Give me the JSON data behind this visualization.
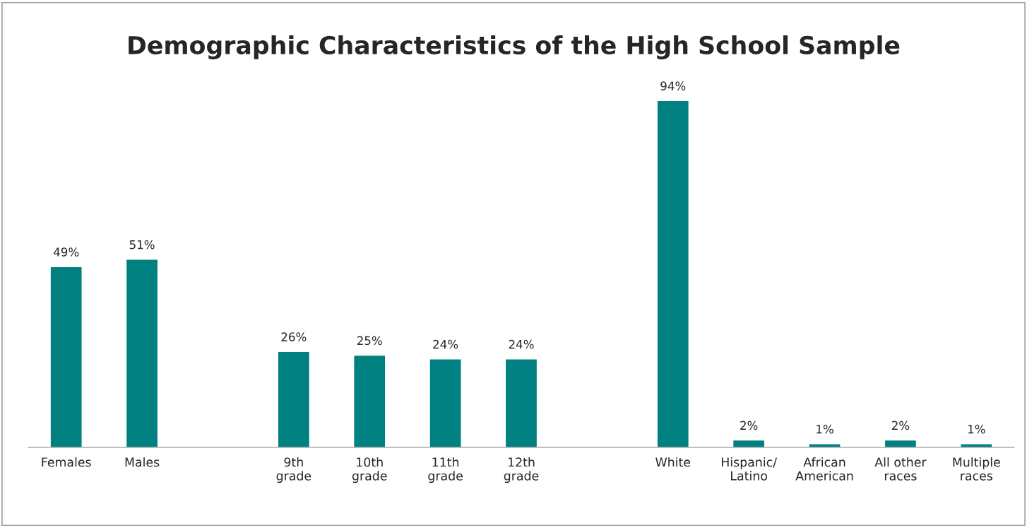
{
  "chart_data": {
    "type": "bar",
    "title": "Demographic Characteristics of the High School Sample",
    "categories": [
      "Females",
      "Males",
      null,
      "9th\ngrade",
      "10th\ngrade",
      "11th\ngrade",
      "12th\ngrade",
      null,
      "White",
      "Hispanic/\nLatino",
      "African\nAmerican",
      "All other\nraces",
      "Multiple\nraces"
    ],
    "values": [
      49,
      51,
      null,
      26,
      25,
      24,
      24,
      null,
      94,
      2,
      1,
      2,
      1
    ],
    "value_labels": [
      "49%",
      "51%",
      null,
      "26%",
      "25%",
      "24%",
      "24%",
      null,
      "94%",
      "2%",
      "1%",
      "2%",
      "1%"
    ],
    "color": "#008080",
    "grid": false,
    "legend": false
  }
}
